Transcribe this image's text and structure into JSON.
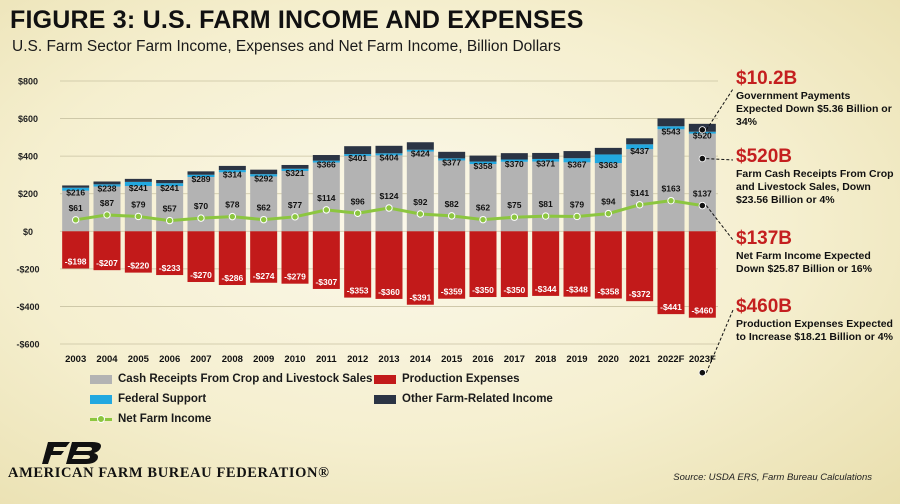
{
  "title": "FIGURE 3: U.S. FARM INCOME AND EXPENSES",
  "subtitle": "U.S. Farm Sector Farm Income, Expenses and Net Farm Income, Billion Dollars",
  "colors": {
    "cash_receipts": "#b3b3b3",
    "production_expenses": "#c21a1a",
    "federal_support": "#22a8e0",
    "other_income": "#2b3444",
    "net_income": "#8cc63f",
    "accent": "#c41f1f"
  },
  "annotations": [
    {
      "value": "$10.2B",
      "text": "Government Payments Expected Down $5.36 Billion or 34%"
    },
    {
      "value": "$520B",
      "text": "Farm Cash Receipts From Crop and Livestock Sales, Down $23.56 Billion or 4%"
    },
    {
      "value": "$137B",
      "text": "Net Farm Income Expected Down $25.87 Billion or 16%"
    },
    {
      "value": "$460B",
      "text": "Production Expenses Expected to Increase $18.21 Billion or 4%"
    }
  ],
  "legend": {
    "cash": "Cash Receipts From Crop and Livestock Sales",
    "expenses": "Production Expenses",
    "federal": "Federal Support",
    "other": "Other Farm-Related Income",
    "net": "Net Farm Income"
  },
  "logo_text": "AMERICAN FARM BUREAU FEDERATION®",
  "source": "Source: USDA ERS, Farm Bureau Calculations",
  "chart_data": {
    "type": "bar",
    "categories": [
      "2003",
      "2004",
      "2005",
      "2006",
      "2007",
      "2008",
      "2009",
      "2010",
      "2011",
      "2012",
      "2013",
      "2014",
      "2015",
      "2016",
      "2017",
      "2018",
      "2019",
      "2020",
      "2021",
      "2022F",
      "2023F"
    ],
    "ylim": [
      -600,
      800
    ],
    "yticks": [
      -600,
      -400,
      -200,
      0,
      200,
      400,
      600,
      800
    ],
    "ytick_labels": [
      "-$600",
      "-$400",
      "-$200",
      "$0",
      "$200",
      "$400",
      "$600",
      "$800"
    ],
    "series": [
      {
        "name": "Cash Receipts From Crop and Livestock Sales",
        "stack": "positive",
        "values": [
          216,
          238,
          241,
          241,
          289,
          314,
          292,
          321,
          366,
          401,
          404,
          424,
          377,
          358,
          370,
          371,
          367,
          363,
          437,
          543,
          520
        ],
        "labels": [
          "$216",
          "$238",
          "$241",
          "$241",
          "$289",
          "$314",
          "$292",
          "$321",
          "$366",
          "$401",
          "$404",
          "$424",
          "$377",
          "$358",
          "$370",
          "$371",
          "$367",
          "$363",
          "$437",
          "$543",
          "$520"
        ]
      },
      {
        "name": "Federal Support",
        "stack": "positive",
        "values": [
          16,
          12,
          22,
          15,
          12,
          12,
          12,
          12,
          10,
          10,
          11,
          10,
          11,
          13,
          12,
          14,
          22,
          46,
          26,
          16,
          10
        ],
        "labels": []
      },
      {
        "name": "Other Farm-Related Income",
        "stack": "positive",
        "values": [
          12,
          15,
          16,
          17,
          18,
          22,
          24,
          20,
          30,
          42,
          40,
          40,
          35,
          32,
          34,
          32,
          38,
          35,
          32,
          42,
          42
        ],
        "labels": []
      },
      {
        "name": "Production Expenses",
        "stack": "negative",
        "values": [
          -198,
          -207,
          -220,
          -233,
          -270,
          -286,
          -274,
          -279,
          -307,
          -353,
          -360,
          -391,
          -359,
          -350,
          -350,
          -344,
          -348,
          -358,
          -372,
          -441,
          -460
        ],
        "labels": [
          "-$198",
          "-$207",
          "-$220",
          "-$233",
          "-$270",
          "-$286",
          "-$274",
          "-$279",
          "-$307",
          "-$353",
          "-$360",
          "-$391",
          "-$359",
          "-$350",
          "-$350",
          "-$344",
          "-$348",
          "-$358",
          "-$372",
          "-$441",
          "-$460"
        ]
      },
      {
        "name": "Net Farm Income",
        "type": "line",
        "values": [
          61,
          87,
          79,
          57,
          70,
          78,
          62,
          77,
          114,
          96,
          124,
          92,
          82,
          62,
          75,
          81,
          79,
          94,
          141,
          163,
          137
        ],
        "labels": [
          "$61",
          "$87",
          "$79",
          "$57",
          "$70",
          "$78",
          "$62",
          "$77",
          "$114",
          "$96",
          "$124",
          "$92",
          "$82",
          "$62",
          "$75",
          "$81",
          "$79",
          "$94",
          "$141",
          "$163",
          "$137"
        ]
      }
    ]
  }
}
